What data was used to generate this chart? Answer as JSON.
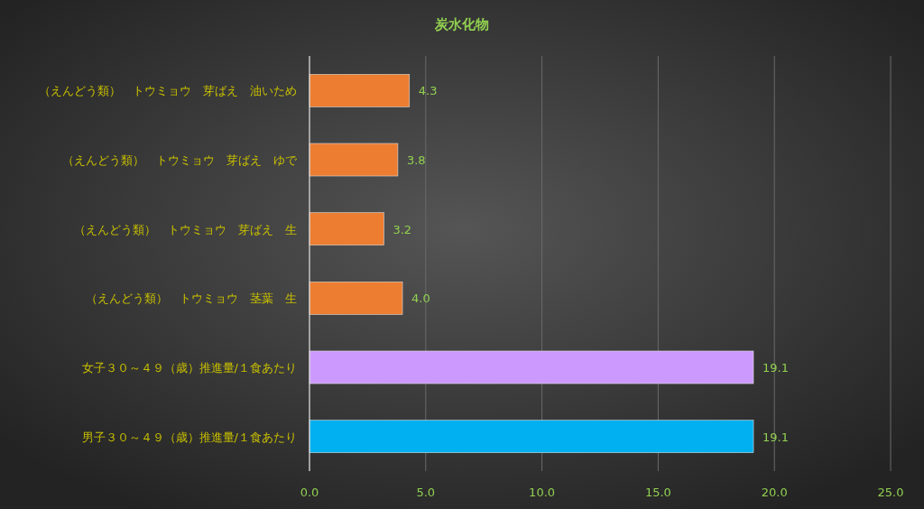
{
  "chart_data": {
    "type": "bar",
    "orientation": "horizontal",
    "title": "炭水化物",
    "categories": [
      "（えんどう類）　トウミョウ　芽ばえ　油いため",
      "（えんどう類）　トウミョウ　芽ばえ　ゆで",
      "（えんどう類）　トウミョウ　芽ばえ　生",
      "（えんどう類）　トウミョウ　茎葉　生",
      "女子３０～４９（歳）推進量/１食あたり",
      "男子３０～４９（歳）推進量/１食あたり"
    ],
    "values": [
      4.3,
      3.8,
      3.2,
      4.0,
      19.1,
      19.1
    ],
    "value_labels": [
      "4.3",
      "3.8",
      "3.2",
      "4.0",
      "19.1",
      "19.1"
    ],
    "colors": [
      "#ed7d31",
      "#ed7d31",
      "#ed7d31",
      "#ed7d31",
      "#cc99ff",
      "#00b0f0"
    ],
    "xlim": [
      0,
      25
    ],
    "xticks": [
      {
        "value": 0,
        "label": "0.0"
      },
      {
        "value": 5,
        "label": "5.0"
      },
      {
        "value": 10,
        "label": "10.0"
      },
      {
        "value": 15,
        "label": "15.0"
      },
      {
        "value": 20,
        "label": "20.0"
      },
      {
        "value": 25,
        "label": "25.0"
      }
    ],
    "grid": "x"
  }
}
